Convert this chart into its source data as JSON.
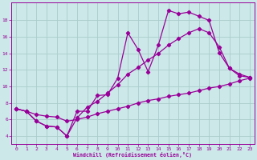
{
  "background_color": "#cce8e8",
  "grid_color": "#aacccc",
  "line_color": "#990099",
  "xlabel": "Windchill (Refroidissement éolien,°C)",
  "xlim": [
    -0.5,
    23.5
  ],
  "ylim": [
    3.0,
    20.2
  ],
  "yticks": [
    4,
    6,
    8,
    10,
    12,
    14,
    16,
    18
  ],
  "xticks": [
    0,
    1,
    2,
    3,
    4,
    5,
    6,
    7,
    8,
    9,
    10,
    11,
    12,
    13,
    14,
    15,
    16,
    17,
    18,
    19,
    20,
    21,
    22,
    23
  ],
  "curve1_x": [
    0,
    1,
    2,
    3,
    4,
    5,
    6,
    7,
    8,
    9,
    10,
    11,
    12,
    13,
    14,
    15,
    16,
    17,
    18,
    19,
    20,
    21,
    22,
    23
  ],
  "curve1_y": [
    7.3,
    7.0,
    5.8,
    5.2,
    5.1,
    4.0,
    7.0,
    7.0,
    8.9,
    9.0,
    11.0,
    16.5,
    14.5,
    11.8,
    15.0,
    19.2,
    18.8,
    19.0,
    18.5,
    18.0,
    14.1,
    12.2,
    11.5,
    11.1
  ],
  "curve2_x": [
    0,
    1,
    2,
    3,
    4,
    5,
    6,
    7,
    8,
    9,
    10,
    11,
    12,
    13,
    14,
    15,
    16,
    17,
    18,
    19,
    20,
    21,
    22,
    23
  ],
  "curve2_y": [
    7.3,
    7.0,
    5.8,
    5.2,
    5.1,
    4.0,
    6.2,
    7.5,
    8.2,
    9.2,
    10.2,
    11.5,
    12.3,
    13.2,
    14.0,
    15.0,
    15.8,
    16.5,
    17.0,
    16.5,
    14.8,
    12.2,
    11.3,
    11.1
  ],
  "curve3_x": [
    0,
    1,
    2,
    3,
    4,
    5,
    6,
    7,
    8,
    9,
    10,
    11,
    12,
    13,
    14,
    15,
    16,
    17,
    18,
    19,
    20,
    21,
    22,
    23
  ],
  "curve3_y": [
    7.3,
    7.0,
    6.6,
    6.4,
    6.3,
    5.8,
    6.0,
    6.3,
    6.7,
    7.0,
    7.3,
    7.6,
    8.0,
    8.3,
    8.5,
    8.8,
    9.0,
    9.2,
    9.5,
    9.8,
    10.0,
    10.3,
    10.7,
    11.0
  ],
  "linewidth": 0.9,
  "marker_size": 2.2
}
